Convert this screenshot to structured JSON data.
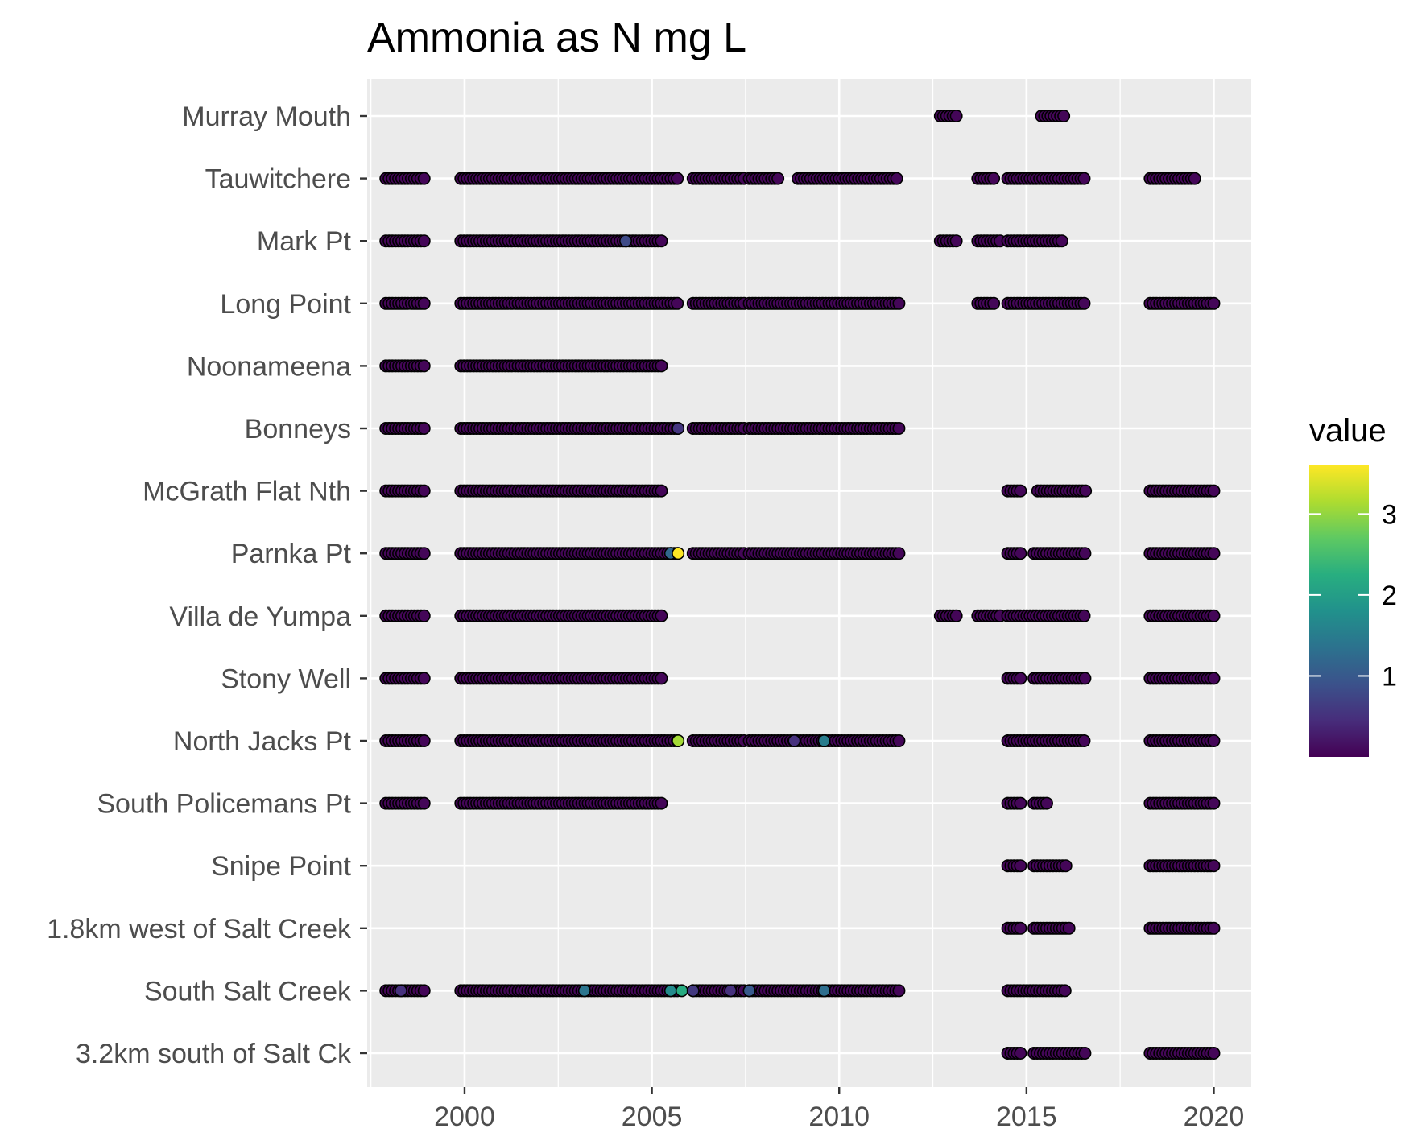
{
  "chart_data": {
    "type": "scatter",
    "title": "Ammonia as N mg L",
    "xlabel": "",
    "ylabel": "",
    "xlim": [
      1997.4,
      2021.0
    ],
    "x_ticks": [
      "2000",
      "2005",
      "2010",
      "2015",
      "2020"
    ],
    "y_categories": [
      "Murray Mouth",
      "Tauwitchere",
      "Mark Pt",
      "Long Point",
      "Noonameena",
      "Bonneys",
      "McGrath Flat Nth",
      "Parnka Pt",
      "Villa de Yumpa",
      "Stony Well",
      "North Jacks Pt",
      "South Policemans Pt",
      "Snipe Point",
      "1.8km west of Salt Creek",
      "South Salt Creek",
      "3.2km south of Salt Ck"
    ],
    "grid": true,
    "legend": {
      "title": "value",
      "position": "right",
      "ticks": [
        "1",
        "2",
        "3"
      ],
      "range": [
        0.0,
        3.6
      ],
      "colorscale": "viridis"
    },
    "panel_background": "#ebebeb",
    "series": [
      {
        "site": "Murray Mouth",
        "segments": [
          [
            2012.7,
            2013.2
          ],
          [
            2015.4,
            2016.0
          ]
        ],
        "highlights": []
      },
      {
        "site": "Tauwitchere",
        "segments": [
          [
            1997.9,
            1999.0
          ],
          [
            1999.9,
            2005.7
          ],
          [
            2006.1,
            2007.5
          ],
          [
            2007.6,
            2008.4
          ],
          [
            2008.9,
            2011.6
          ],
          [
            2013.7,
            2014.2
          ],
          [
            2014.5,
            2016.6
          ],
          [
            2018.3,
            2019.5
          ]
        ],
        "highlights": []
      },
      {
        "site": "Mark Pt",
        "segments": [
          [
            1997.9,
            1999.0
          ],
          [
            1999.9,
            2005.3
          ],
          [
            2012.7,
            2013.2
          ],
          [
            2013.7,
            2014.3
          ],
          [
            2014.5,
            2016.0
          ]
        ],
        "highlights": [
          {
            "x": 2004.3,
            "value": 0.8
          }
        ]
      },
      {
        "site": "Long Point",
        "segments": [
          [
            1997.9,
            1999.0
          ],
          [
            1999.9,
            2005.7
          ],
          [
            2006.1,
            2007.5
          ],
          [
            2007.6,
            2011.6
          ],
          [
            2013.7,
            2014.2
          ],
          [
            2014.5,
            2016.6
          ],
          [
            2018.3,
            2020.0
          ]
        ],
        "highlights": []
      },
      {
        "site": "Noonameena",
        "segments": [
          [
            1997.9,
            1999.0
          ],
          [
            1999.9,
            2005.3
          ]
        ],
        "highlights": []
      },
      {
        "site": "Bonneys",
        "segments": [
          [
            1997.9,
            1999.0
          ],
          [
            1999.9,
            2005.7
          ],
          [
            2006.1,
            2007.5
          ],
          [
            2007.6,
            2011.6
          ]
        ],
        "highlights": [
          {
            "x": 2005.7,
            "value": 0.55
          }
        ]
      },
      {
        "site": "McGrath Flat Nth",
        "segments": [
          [
            1997.9,
            1999.0
          ],
          [
            1999.9,
            2005.3
          ],
          [
            2014.5,
            2014.9
          ],
          [
            2015.3,
            2016.6
          ],
          [
            2018.3,
            2020.0
          ]
        ],
        "highlights": []
      },
      {
        "site": "Parnka Pt",
        "segments": [
          [
            1997.9,
            1999.0
          ],
          [
            1999.9,
            2005.7
          ],
          [
            2006.1,
            2007.5
          ],
          [
            2007.6,
            2011.6
          ],
          [
            2014.5,
            2014.9
          ],
          [
            2015.2,
            2016.6
          ],
          [
            2018.3,
            2020.0
          ]
        ],
        "highlights": [
          {
            "x": 2005.5,
            "value": 1.2
          },
          {
            "x": 2005.7,
            "value": 3.6
          }
        ]
      },
      {
        "site": "Villa de Yumpa",
        "segments": [
          [
            1997.9,
            1999.0
          ],
          [
            1999.9,
            2005.3
          ],
          [
            2012.7,
            2013.2
          ],
          [
            2013.7,
            2014.3
          ],
          [
            2014.5,
            2016.6
          ],
          [
            2018.3,
            2020.0
          ]
        ],
        "highlights": []
      },
      {
        "site": "Stony Well",
        "segments": [
          [
            1997.9,
            1999.0
          ],
          [
            1999.9,
            2005.3
          ],
          [
            2014.5,
            2014.9
          ],
          [
            2015.2,
            2016.6
          ],
          [
            2018.3,
            2020.0
          ]
        ],
        "highlights": []
      },
      {
        "site": "North Jacks Pt",
        "segments": [
          [
            1997.9,
            1999.0
          ],
          [
            1999.9,
            2005.7
          ],
          [
            2006.1,
            2007.5
          ],
          [
            2007.6,
            2011.6
          ],
          [
            2014.5,
            2016.6
          ],
          [
            2018.3,
            2020.0
          ]
        ],
        "highlights": [
          {
            "x": 2005.7,
            "value": 3.1
          },
          {
            "x": 2008.8,
            "value": 0.5
          },
          {
            "x": 2009.6,
            "value": 1.5
          }
        ]
      },
      {
        "site": "South Policemans Pt",
        "segments": [
          [
            1997.9,
            1999.0
          ],
          [
            1999.9,
            2005.3
          ],
          [
            2014.5,
            2014.9
          ],
          [
            2015.2,
            2015.6
          ],
          [
            2018.3,
            2020.0
          ]
        ],
        "highlights": []
      },
      {
        "site": "Snipe Point",
        "segments": [
          [
            2014.5,
            2014.9
          ],
          [
            2015.2,
            2016.1
          ],
          [
            2018.3,
            2020.0
          ]
        ],
        "highlights": []
      },
      {
        "site": "1.8km west of Salt Creek",
        "segments": [
          [
            2014.5,
            2014.9
          ],
          [
            2015.2,
            2016.2
          ],
          [
            2018.3,
            2020.0
          ]
        ],
        "highlights": []
      },
      {
        "site": "South Salt Creek",
        "segments": [
          [
            1997.9,
            1999.0
          ],
          [
            1999.9,
            2005.7
          ],
          [
            2006.1,
            2007.5
          ],
          [
            2007.6,
            2011.6
          ],
          [
            2014.5,
            2016.1
          ]
        ],
        "highlights": [
          {
            "x": 1998.3,
            "value": 0.5
          },
          {
            "x": 2003.2,
            "value": 1.4
          },
          {
            "x": 2005.5,
            "value": 1.7
          },
          {
            "x": 2005.8,
            "value": 2.2
          },
          {
            "x": 2006.1,
            "value": 0.6
          },
          {
            "x": 2007.1,
            "value": 0.5
          },
          {
            "x": 2007.6,
            "value": 1.0
          },
          {
            "x": 2009.6,
            "value": 1.3
          }
        ]
      },
      {
        "site": "3.2km south of Salt Ck",
        "segments": [
          [
            2014.5,
            2014.9
          ],
          [
            2015.2,
            2016.6
          ],
          [
            2018.3,
            2020.0
          ]
        ],
        "highlights": []
      }
    ]
  }
}
